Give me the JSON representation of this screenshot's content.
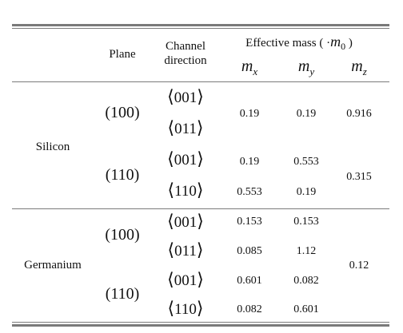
{
  "header": {
    "plane": "Plane",
    "channel_line1": "Channel",
    "channel_line2": "direction",
    "effective_mass_prefix": "Effective mass ( ·",
    "m0": "m",
    "m0_sub": "0",
    "effective_mass_suffix": " )",
    "mx": "m",
    "mx_sub": "x",
    "my": "m",
    "my_sub": "y",
    "mz": "m",
    "mz_sub": "z"
  },
  "silicon": {
    "name": "Silicon",
    "plane1": "(100)",
    "plane2": "(110)",
    "dirs": [
      "001",
      "011",
      "001",
      "110"
    ],
    "mx": [
      "0.19",
      "0.19",
      "0.553"
    ],
    "my": [
      "0.19",
      "0.553",
      "0.19"
    ],
    "mz": [
      "0.916",
      "0.315"
    ]
  },
  "germanium": {
    "name": "Germanium",
    "plane1": "(100)",
    "plane2": "(110)",
    "dirs": [
      "001",
      "011",
      "001",
      "110"
    ],
    "mx": [
      "0.153",
      "0.085",
      "0.601",
      "0.082"
    ],
    "my": [
      "0.153",
      "1.12",
      "0.082",
      "0.601"
    ],
    "mz": [
      "0.12"
    ]
  },
  "glyphs": {
    "langle": "⟨",
    "rangle": "⟩"
  }
}
